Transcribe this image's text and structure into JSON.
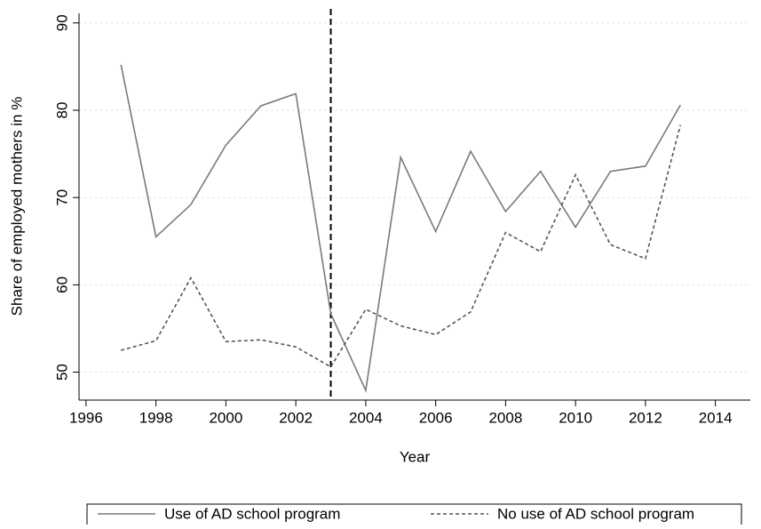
{
  "chart_data": {
    "type": "line",
    "xlabel": "Year",
    "ylabel": "Share of employed mothers in %",
    "x": [
      1997,
      1998,
      1999,
      2000,
      2001,
      2002,
      2003,
      2004,
      2005,
      2006,
      2007,
      2008,
      2009,
      2010,
      2011,
      2012,
      2013
    ],
    "series": [
      {
        "name": "Use of AD school program",
        "color": "#7a7a7a",
        "dash": "solid",
        "values": [
          85.2,
          65.5,
          69.2,
          76.0,
          80.5,
          81.9,
          56.7,
          47.9,
          74.6,
          66.1,
          75.3,
          68.4,
          73.0,
          66.6,
          73.0,
          73.6,
          80.6
        ]
      },
      {
        "name": "No use of AD school program",
        "color": "#555555",
        "dash": "dashed",
        "values": [
          52.5,
          53.6,
          60.8,
          53.5,
          53.7,
          52.9,
          50.6,
          57.2,
          55.3,
          54.3,
          56.9,
          66.0,
          63.8,
          72.6,
          64.6,
          63.0,
          78.3
        ]
      }
    ],
    "vline": 2003,
    "xlim": [
      1995.8,
      2015
    ],
    "xticks": [
      1996,
      1998,
      2000,
      2002,
      2004,
      2006,
      2008,
      2010,
      2012,
      2014
    ],
    "ylim": [
      46.8,
      91.1
    ],
    "yticks": [
      50,
      60,
      70,
      80,
      90
    ],
    "grid": true,
    "legend": "bottom"
  }
}
